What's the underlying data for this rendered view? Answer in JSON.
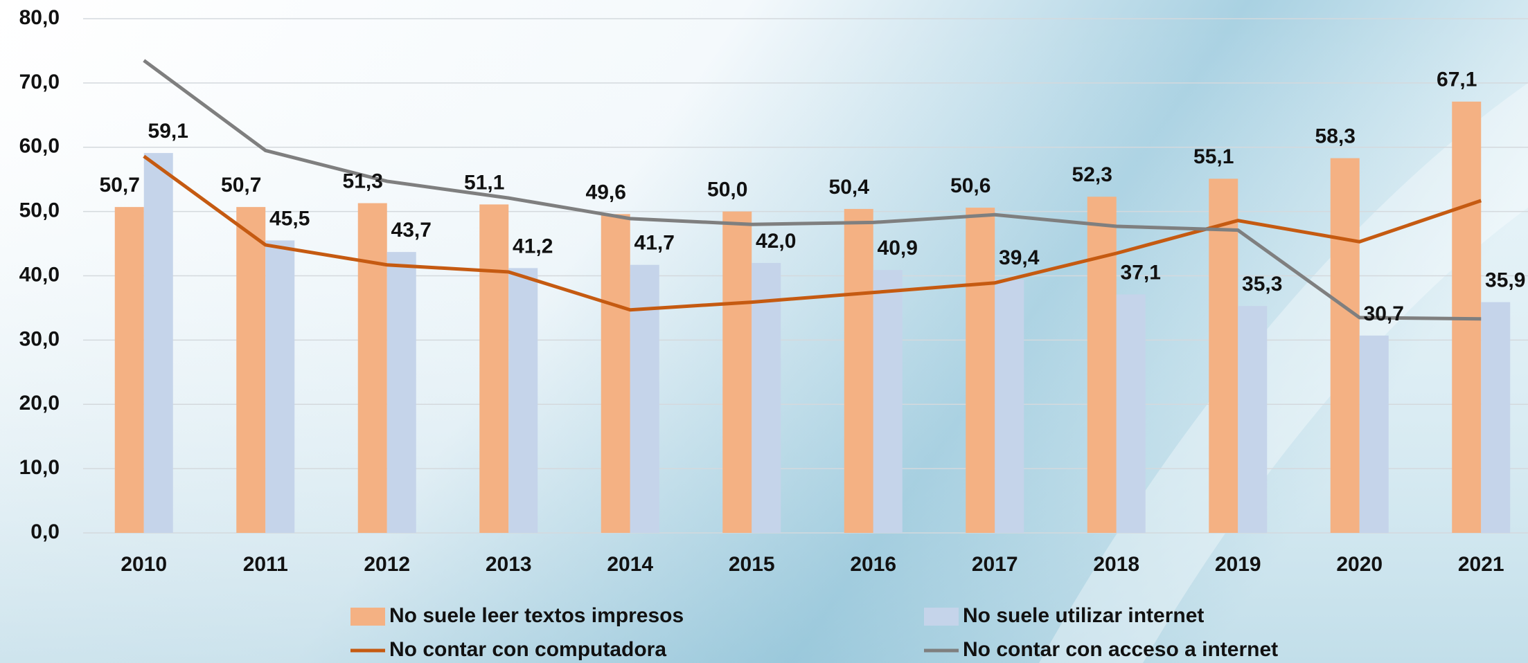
{
  "chart_data": {
    "type": "bar",
    "categories": [
      "2010",
      "2011",
      "2012",
      "2013",
      "2014",
      "2015",
      "2016",
      "2017",
      "2018",
      "2019",
      "2020",
      "2021"
    ],
    "series": [
      {
        "name": "No suele leer textos impresos",
        "type": "bar",
        "color": "#f4b183",
        "values": [
          50.7,
          50.7,
          51.3,
          51.1,
          49.6,
          50.0,
          50.4,
          50.6,
          52.3,
          55.1,
          58.3,
          67.1
        ],
        "value_labels": [
          "50,7",
          "50,7",
          "51,3",
          "51,1",
          "49,6",
          "50,0",
          "50,4",
          "50,6",
          "52,3",
          "55,1",
          "58,3",
          "67,1"
        ]
      },
      {
        "name": "No suele utilizar internet",
        "type": "bar",
        "color": "#c5d4ea",
        "values": [
          59.1,
          45.5,
          43.7,
          41.2,
          41.7,
          42.0,
          40.9,
          39.4,
          37.1,
          35.3,
          30.7,
          35.9
        ],
        "value_labels": [
          "59,1",
          "45,5",
          "43,7",
          "41,2",
          "41,7",
          "42,0",
          "40,9",
          "39,4",
          "37,1",
          "35,3",
          "30,7",
          "35,9"
        ]
      },
      {
        "name": "No contar con computadora",
        "type": "line",
        "color": "#c55a11",
        "values": [
          58.6,
          44.8,
          41.7,
          40.6,
          34.7,
          35.9,
          37.4,
          38.9,
          43.5,
          48.6,
          45.3,
          51.7
        ]
      },
      {
        "name": "No contar con acceso a internet",
        "type": "line",
        "color": "#7f7f7f",
        "values": [
          73.5,
          59.5,
          54.7,
          52.1,
          48.9,
          48.0,
          48.3,
          49.5,
          47.7,
          47.1,
          33.5,
          33.3
        ]
      }
    ],
    "ylim": [
      0,
      80
    ],
    "yticks": [
      {
        "value": 0,
        "label": "0,0"
      },
      {
        "value": 10,
        "label": "10,0"
      },
      {
        "value": 20,
        "label": "20,0"
      },
      {
        "value": 30,
        "label": "30,0"
      },
      {
        "value": 40,
        "label": "40,0"
      },
      {
        "value": 50,
        "label": "50,0"
      },
      {
        "value": 60,
        "label": "60,0"
      },
      {
        "value": 70,
        "label": "70,0"
      },
      {
        "value": 80,
        "label": "80,0"
      }
    ],
    "grid": true
  }
}
